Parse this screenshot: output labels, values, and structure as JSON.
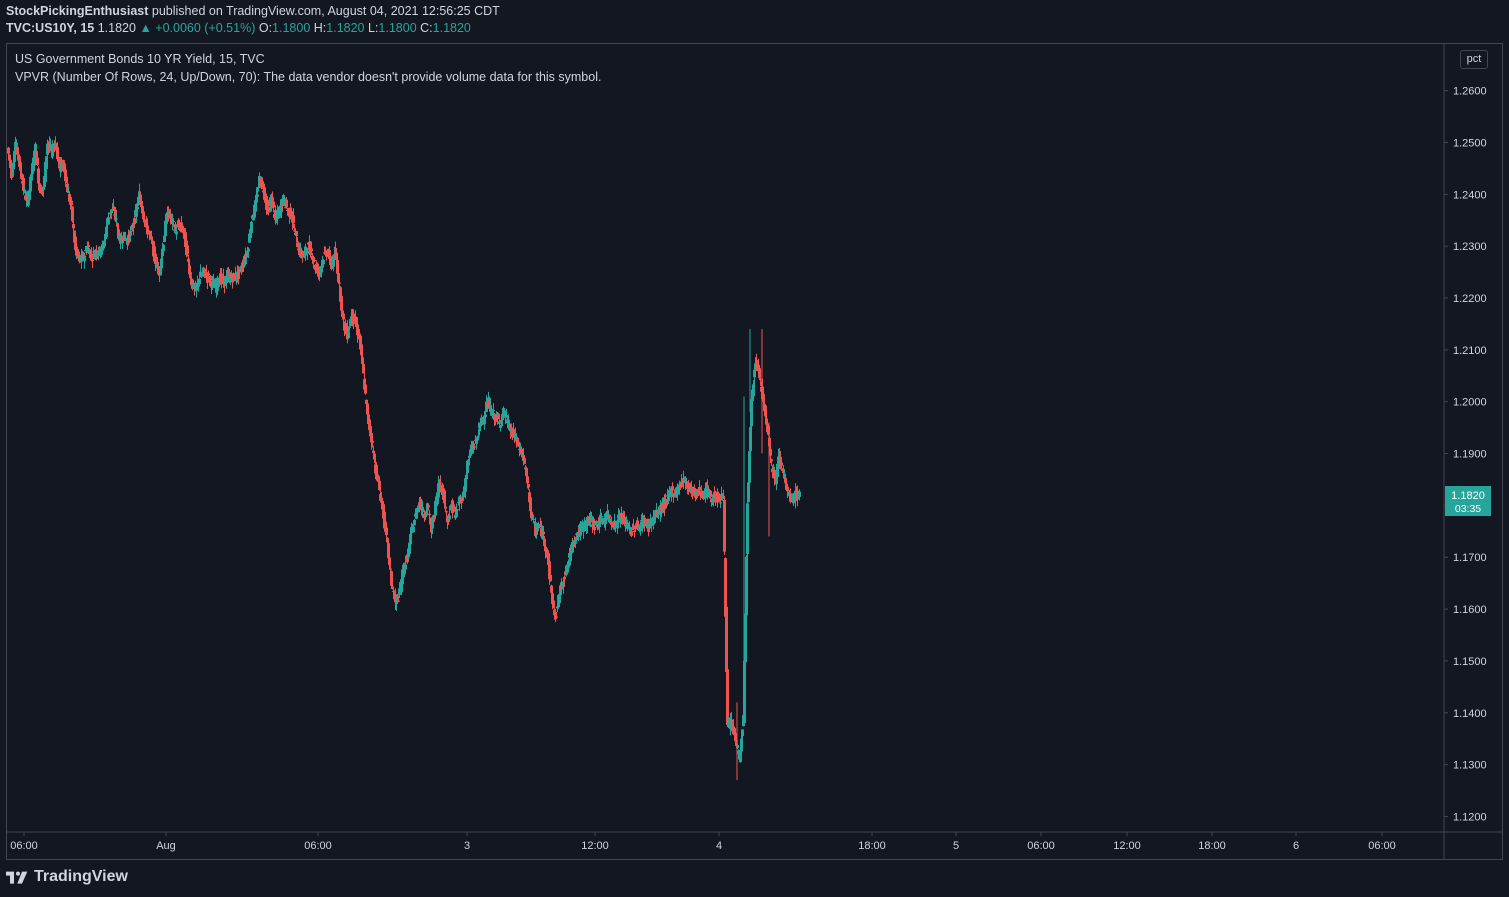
{
  "header": {
    "author": "StockPickingEnthusiast",
    "published": " published on TradingView.com, August 04, 2021 12:56:25 CDT",
    "symbol": "TVC:US10Y, 15",
    "last": "1.1820",
    "change": "▲ +0.0060 (+0.51%)",
    "o_label": "O:",
    "o": "1.1800",
    "h_label": "H:",
    "h": "1.1820",
    "l_label": "L:",
    "l": "1.1800",
    "c_label": "C:",
    "c": "1.1820"
  },
  "legend": {
    "title": "US Government Bonds 10 YR Yield, 15, TVC",
    "indicator": "VPVR (Number Of Rows, 24, Up/Down, 70): The data vendor doesn't provide volume data for this symbol."
  },
  "scale_button": "pct",
  "price_tag": {
    "value": "1.1820",
    "countdown": "03:35"
  },
  "footer": {
    "logo_text": "TradingView"
  },
  "colors": {
    "up": "#26a69a",
    "down": "#ef5350",
    "background": "#131722",
    "tag": "#26a69a"
  },
  "chart_data": {
    "type": "candlestick",
    "y_ticks": [
      "1.2600",
      "1.2500",
      "1.2400",
      "1.2300",
      "1.2200",
      "1.2100",
      "1.2000",
      "1.1900",
      "1.1800",
      "1.1700",
      "1.1600",
      "1.1500",
      "1.1400",
      "1.1300",
      "1.1200"
    ],
    "x_ticks": [
      "06:00",
      "Aug",
      "06:00",
      "3",
      "12:00",
      "4",
      "18:00",
      "5",
      "06:00",
      "12:00",
      "18:00",
      "6",
      "06:00"
    ],
    "ylim": [
      1.117,
      1.269
    ],
    "close_path": [
      [
        0,
        1.249
      ],
      [
        4,
        1.244
      ],
      [
        8,
        1.25
      ],
      [
        12,
        1.246
      ],
      [
        16,
        1.241
      ],
      [
        20,
        1.238
      ],
      [
        24,
        1.244
      ],
      [
        28,
        1.249
      ],
      [
        32,
        1.241
      ],
      [
        36,
        1.241
      ],
      [
        40,
        1.25
      ],
      [
        44,
        1.248
      ],
      [
        48,
        1.25
      ],
      [
        52,
        1.245
      ],
      [
        56,
        1.246
      ],
      [
        60,
        1.241
      ],
      [
        64,
        1.237
      ],
      [
        68,
        1.229
      ],
      [
        72,
        1.227
      ],
      [
        76,
        1.228
      ],
      [
        80,
        1.23
      ],
      [
        84,
        1.228
      ],
      [
        88,
        1.229
      ],
      [
        92,
        1.229
      ],
      [
        96,
        1.23
      ],
      [
        100,
        1.235
      ],
      [
        104,
        1.237
      ],
      [
        108,
        1.236
      ],
      [
        112,
        1.231
      ],
      [
        116,
        1.232
      ],
      [
        120,
        1.231
      ],
      [
        124,
        1.233
      ],
      [
        128,
        1.236
      ],
      [
        132,
        1.24
      ],
      [
        136,
        1.236
      ],
      [
        140,
        1.233
      ],
      [
        144,
        1.231
      ],
      [
        148,
        1.227
      ],
      [
        152,
        1.225
      ],
      [
        156,
        1.231
      ],
      [
        160,
        1.237
      ],
      [
        164,
        1.235
      ],
      [
        168,
        1.233
      ],
      [
        172,
        1.234
      ],
      [
        176,
        1.233
      ],
      [
        180,
        1.228
      ],
      [
        184,
        1.223
      ],
      [
        188,
        1.221
      ],
      [
        192,
        1.224
      ],
      [
        196,
        1.225
      ],
      [
        200,
        1.224
      ],
      [
        204,
        1.223
      ],
      [
        208,
        1.222
      ],
      [
        212,
        1.224
      ],
      [
        216,
        1.223
      ],
      [
        220,
        1.224
      ],
      [
        224,
        1.224
      ],
      [
        228,
        1.224
      ],
      [
        232,
        1.225
      ],
      [
        236,
        1.227
      ],
      [
        240,
        1.229
      ],
      [
        244,
        1.235
      ],
      [
        248,
        1.238
      ],
      [
        252,
        1.243
      ],
      [
        256,
        1.241
      ],
      [
        260,
        1.237
      ],
      [
        264,
        1.239
      ],
      [
        268,
        1.235
      ],
      [
        272,
        1.237
      ],
      [
        276,
        1.239
      ],
      [
        280,
        1.237
      ],
      [
        284,
        1.236
      ],
      [
        288,
        1.232
      ],
      [
        292,
        1.229
      ],
      [
        296,
        1.228
      ],
      [
        300,
        1.23
      ],
      [
        304,
        1.229
      ],
      [
        308,
        1.226
      ],
      [
        312,
        1.225
      ],
      [
        316,
        1.228
      ],
      [
        320,
        1.229
      ],
      [
        324,
        1.226
      ],
      [
        328,
        1.229
      ],
      [
        332,
        1.222
      ],
      [
        336,
        1.215
      ],
      [
        340,
        1.213
      ],
      [
        344,
        1.217
      ],
      [
        348,
        1.215
      ],
      [
        352,
        1.212
      ],
      [
        356,
        1.205
      ],
      [
        360,
        1.197
      ],
      [
        364,
        1.193
      ],
      [
        368,
        1.187
      ],
      [
        372,
        1.183
      ],
      [
        376,
        1.178
      ],
      [
        380,
        1.172
      ],
      [
        384,
        1.165
      ],
      [
        388,
        1.161
      ],
      [
        392,
        1.163
      ],
      [
        396,
        1.168
      ],
      [
        400,
        1.17
      ],
      [
        404,
        1.175
      ],
      [
        408,
        1.178
      ],
      [
        412,
        1.181
      ],
      [
        416,
        1.178
      ],
      [
        420,
        1.18
      ],
      [
        424,
        1.175
      ],
      [
        428,
        1.18
      ],
      [
        432,
        1.185
      ],
      [
        436,
        1.182
      ],
      [
        440,
        1.177
      ],
      [
        444,
        1.18
      ],
      [
        448,
        1.178
      ],
      [
        452,
        1.181
      ],
      [
        456,
        1.182
      ],
      [
        460,
        1.188
      ],
      [
        464,
        1.191
      ],
      [
        468,
        1.192
      ],
      [
        472,
        1.195
      ],
      [
        476,
        1.197
      ],
      [
        480,
        1.2
      ],
      [
        484,
        1.198
      ],
      [
        488,
        1.197
      ],
      [
        492,
        1.196
      ],
      [
        496,
        1.198
      ],
      [
        500,
        1.196
      ],
      [
        504,
        1.194
      ],
      [
        508,
        1.193
      ],
      [
        512,
        1.191
      ],
      [
        516,
        1.189
      ],
      [
        520,
        1.184
      ],
      [
        524,
        1.178
      ],
      [
        528,
        1.175
      ],
      [
        532,
        1.176
      ],
      [
        536,
        1.174
      ],
      [
        540,
        1.17
      ],
      [
        544,
        1.163
      ],
      [
        548,
        1.158
      ],
      [
        552,
        1.163
      ],
      [
        556,
        1.166
      ],
      [
        560,
        1.168
      ],
      [
        564,
        1.172
      ],
      [
        568,
        1.174
      ],
      [
        572,
        1.175
      ],
      [
        576,
        1.176
      ],
      [
        580,
        1.177
      ],
      [
        584,
        1.177
      ],
      [
        588,
        1.176
      ],
      [
        592,
        1.177
      ],
      [
        596,
        1.177
      ],
      [
        600,
        1.178
      ],
      [
        604,
        1.177
      ],
      [
        608,
        1.176
      ],
      [
        612,
        1.178
      ],
      [
        616,
        1.177
      ],
      [
        620,
        1.176
      ],
      [
        624,
        1.175
      ],
      [
        628,
        1.176
      ],
      [
        632,
        1.176
      ],
      [
        636,
        1.177
      ],
      [
        640,
        1.176
      ],
      [
        644,
        1.177
      ],
      [
        648,
        1.178
      ],
      [
        652,
        1.179
      ],
      [
        656,
        1.18
      ],
      [
        660,
        1.181
      ],
      [
        664,
        1.183
      ],
      [
        668,
        1.182
      ],
      [
        672,
        1.184
      ],
      [
        676,
        1.185
      ],
      [
        680,
        1.184
      ],
      [
        684,
        1.183
      ],
      [
        688,
        1.182
      ],
      [
        692,
        1.183
      ],
      [
        696,
        1.182
      ],
      [
        700,
        1.183
      ],
      [
        704,
        1.181
      ],
      [
        708,
        1.182
      ],
      [
        712,
        1.181
      ],
      [
        716,
        1.182
      ],
      [
        720,
        1.137
      ],
      [
        724,
        1.138
      ],
      [
        728,
        1.135
      ],
      [
        732,
        1.131
      ],
      [
        736,
        1.139
      ],
      [
        740,
        1.18
      ],
      [
        744,
        1.2
      ],
      [
        748,
        1.208
      ],
      [
        752,
        1.205
      ],
      [
        756,
        1.2
      ],
      [
        760,
        1.195
      ],
      [
        764,
        1.188
      ],
      [
        768,
        1.185
      ],
      [
        772,
        1.19
      ],
      [
        776,
        1.186
      ],
      [
        780,
        1.182
      ],
      [
        784,
        1.181
      ],
      [
        788,
        1.182
      ],
      [
        792,
        1.182
      ]
    ]
  }
}
